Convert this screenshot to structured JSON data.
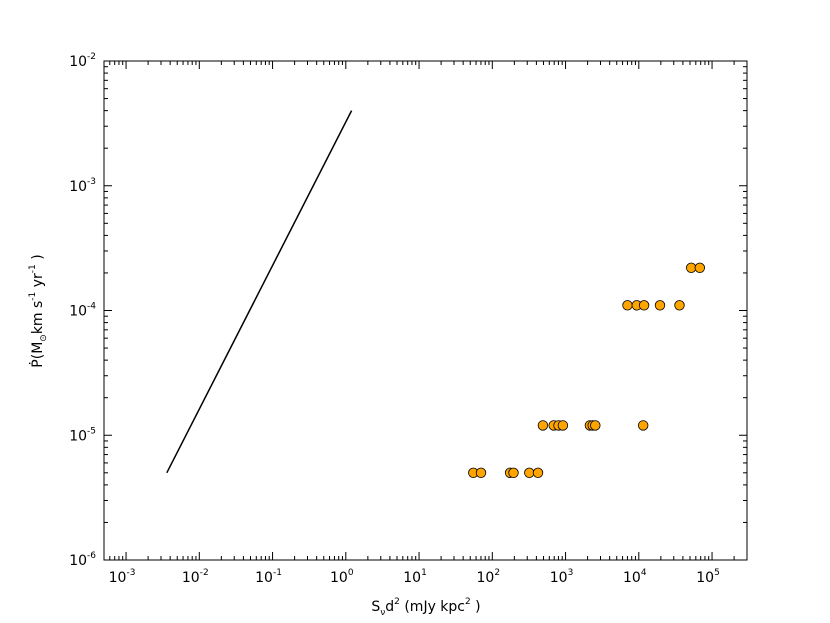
{
  "chart_data": {
    "type": "scatter",
    "title": "",
    "xlabel": {
      "base": "S",
      "sub": "ν",
      "mid": "d",
      "sup": "2",
      "tail": " (mJy kpc",
      "sup2": "2",
      "end": " )"
    },
    "ylabel": {
      "lead": "Ṗ(M",
      "sub": "⊙",
      "mid": "km s",
      "sup1": "-1",
      "mid2": " yr",
      "sup2": "-1",
      "end": " )"
    },
    "xscale": "log",
    "yscale": "log",
    "xlim": [
      0.0005,
      300000
    ],
    "ylim": [
      1e-06,
      0.01
    ],
    "grid": false,
    "x_ticks": [
      {
        "base": "10",
        "exp": "-3",
        "value": 0.001
      },
      {
        "base": "10",
        "exp": "-2",
        "value": 0.01
      },
      {
        "base": "10",
        "exp": "-1",
        "value": 0.1
      },
      {
        "base": "10",
        "exp": "0",
        "value": 1
      },
      {
        "base": "10",
        "exp": "1",
        "value": 10
      },
      {
        "base": "10",
        "exp": "2",
        "value": 100
      },
      {
        "base": "10",
        "exp": "3",
        "value": 1000
      },
      {
        "base": "10",
        "exp": "4",
        "value": 10000
      },
      {
        "base": "10",
        "exp": "5",
        "value": 100000
      }
    ],
    "y_ticks": [
      {
        "base": "10",
        "exp": "-6",
        "value": 1e-06
      },
      {
        "base": "10",
        "exp": "-5",
        "value": 1e-05
      },
      {
        "base": "10",
        "exp": "-4",
        "value": 0.0001
      },
      {
        "base": "10",
        "exp": "-3",
        "value": 0.001
      },
      {
        "base": "10",
        "exp": "-2",
        "value": 0.01
      }
    ],
    "series": [
      {
        "kind": "line",
        "color": "#000000",
        "points": [
          [
            0.0036,
            5e-06
          ],
          [
            1.2,
            0.004
          ]
        ]
      },
      {
        "kind": "scatter",
        "color": "#FFA500",
        "edgecolor": "#000000",
        "points": [
          [
            55,
            5e-06
          ],
          [
            70,
            5e-06
          ],
          [
            175,
            5e-06
          ],
          [
            195,
            5e-06
          ],
          [
            320,
            5e-06
          ],
          [
            420,
            5e-06
          ],
          [
            490,
            1.2e-05
          ],
          [
            690,
            1.2e-05
          ],
          [
            800,
            1.2e-05
          ],
          [
            920,
            1.2e-05
          ],
          [
            2150,
            1.2e-05
          ],
          [
            2350,
            1.2e-05
          ],
          [
            2550,
            1.2e-05
          ],
          [
            11500,
            1.2e-05
          ],
          [
            7000,
            0.00011
          ],
          [
            9400,
            0.00011
          ],
          [
            11800,
            0.00011
          ],
          [
            19500,
            0.00011
          ],
          [
            36000,
            0.00011
          ],
          [
            52000,
            0.00022
          ],
          [
            68000,
            0.00022
          ]
        ]
      }
    ]
  }
}
